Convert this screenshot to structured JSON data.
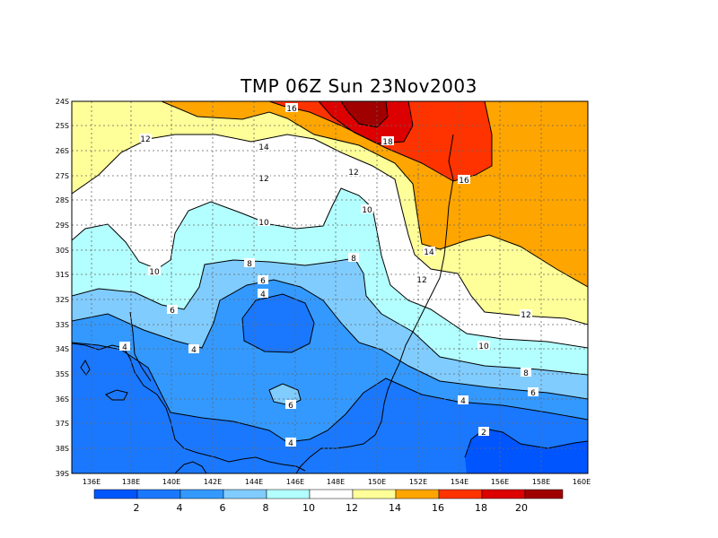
{
  "title": "TMP 06Z Sun 23Nov2003",
  "lat_labels": [
    "24S",
    "25S",
    "26S",
    "27S",
    "28S",
    "29S",
    "30S",
    "31S",
    "32S",
    "33S",
    "34S",
    "35S",
    "36S",
    "37S",
    "38S",
    "39S"
  ],
  "lon_labels": [
    "136E",
    "138E",
    "140E",
    "142E",
    "144E",
    "146E",
    "148E",
    "150E",
    "152E",
    "154E",
    "156E",
    "158E",
    "160E"
  ],
  "contour_labels": [
    "16",
    "18",
    "16",
    "14",
    "12",
    "12",
    "12",
    "10",
    "10",
    "10",
    "8",
    "8",
    "6",
    "6",
    "4",
    "4",
    "4",
    "4",
    "14",
    "12",
    "12",
    "10",
    "8",
    "6",
    "4",
    "6",
    "2"
  ],
  "colorbar": {
    "colors": [
      "#0055ff",
      "#1a78ff",
      "#3399ff",
      "#80ccff",
      "#b3ffff",
      "#ffffff",
      "#ffff99",
      "#ffa500",
      "#ff3300",
      "#dd0000",
      "#a00000"
    ],
    "labels": [
      "2",
      "4",
      "6",
      "8",
      "10",
      "12",
      "14",
      "16",
      "18",
      "20"
    ]
  }
}
